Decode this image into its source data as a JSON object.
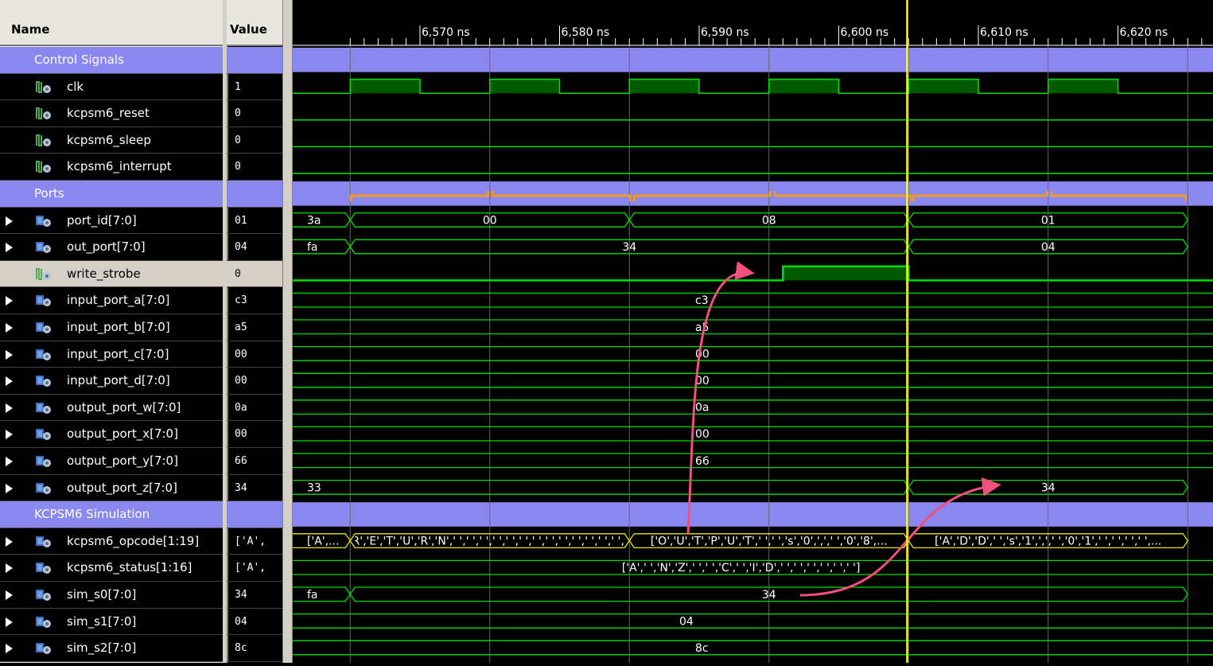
{
  "headers": {
    "name": "Name",
    "value": "Value"
  },
  "time_axis": {
    "unit": "ns",
    "labels": [
      "6,570 ns",
      "6,580 ns",
      "6,590 ns",
      "6,600 ns",
      "6,610 ns",
      "6,620 ns"
    ]
  },
  "rows": [
    {
      "type": "group",
      "name": "Control Signals",
      "value": ""
    },
    {
      "type": "bit",
      "name": "clk",
      "value": "1"
    },
    {
      "type": "bit",
      "name": "kcpsm6_reset",
      "value": "0"
    },
    {
      "type": "bit",
      "name": "kcpsm6_sleep",
      "value": "0"
    },
    {
      "type": "bit",
      "name": "kcpsm6_interrupt",
      "value": "0"
    },
    {
      "type": "group",
      "name": "Ports",
      "value": ""
    },
    {
      "type": "bus",
      "name": "port_id[7:0]",
      "value": "01"
    },
    {
      "type": "bus",
      "name": "out_port[7:0]",
      "value": "04"
    },
    {
      "type": "bit",
      "name": "write_strobe",
      "value": "0",
      "selected": true
    },
    {
      "type": "bus",
      "name": "input_port_a[7:0]",
      "value": "c3"
    },
    {
      "type": "bus",
      "name": "input_port_b[7:0]",
      "value": "a5"
    },
    {
      "type": "bus",
      "name": "input_port_c[7:0]",
      "value": "00"
    },
    {
      "type": "bus",
      "name": "input_port_d[7:0]",
      "value": "00"
    },
    {
      "type": "bus",
      "name": "output_port_w[7:0]",
      "value": "0a"
    },
    {
      "type": "bus",
      "name": "output_port_x[7:0]",
      "value": "00"
    },
    {
      "type": "bus",
      "name": "output_port_y[7:0]",
      "value": "66"
    },
    {
      "type": "bus",
      "name": "output_port_z[7:0]",
      "value": "34"
    },
    {
      "type": "group",
      "name": "KCPSM6 Simulation",
      "value": ""
    },
    {
      "type": "bus",
      "name": "kcpsm6_opcode[1:19]",
      "value": "['A',"
    },
    {
      "type": "bus",
      "name": "kcpsm6_status[1:16]",
      "value": "['A',"
    },
    {
      "type": "bus",
      "name": "sim_s0[7:0]",
      "value": "34"
    },
    {
      "type": "bus",
      "name": "sim_s1[7:0]",
      "value": "04"
    },
    {
      "type": "bus",
      "name": "sim_s2[7:0]",
      "value": "8c"
    }
  ],
  "waves": {
    "clk_rising_ns": [
      6565,
      6575,
      6585,
      6595,
      6605,
      6615
    ],
    "cursor_ns": 6604.9,
    "write_strobe": {
      "high_from_ns": 6596,
      "high_to_ns": 6605
    },
    "port_id": [
      {
        "v": "3a",
        "t1": 6565
      },
      {
        "v": "00",
        "t0": 6565,
        "t1": 6585
      },
      {
        "v": "08",
        "t0": 6585,
        "t1": 6605
      },
      {
        "v": "01",
        "t0": 6605,
        "t1": 6625
      }
    ],
    "out_port": [
      {
        "v": "fa",
        "t1": 6565
      },
      {
        "v": "34",
        "t0": 6565,
        "t1": 6605
      },
      {
        "v": "04",
        "t0": 6605,
        "t1": 6625
      }
    ],
    "const_rows": {
      "input_port_a": "c3",
      "input_port_b": "a5",
      "input_port_c": "00",
      "input_port_d": "00",
      "output_port_w": "0a",
      "output_port_x": "00",
      "output_port_y": "66",
      "sim_s1": "04",
      "sim_s2": "8c"
    },
    "output_port_z": [
      {
        "v": "33",
        "t1": 6605
      },
      {
        "v": "34",
        "t0": 6605,
        "t1": 6625
      }
    ],
    "opcode": [
      {
        "v": "['A',...",
        "t1": 6565
      },
      {
        "v": "['R','E','T','U','R','N',' ',' ',' ',' ',' ',' ',' ',' ',' ',' ',' ',' ',' ',...",
        "t0": 6565,
        "t1": 6585
      },
      {
        "v": "['O','U','T','P','U','T',' ',' ','s','0',',',' ','0','8',...",
        "t0": 6585,
        "t1": 6605
      },
      {
        "v": "['A','D','D',' ','s','1',',',' ','0','1',' ',' ',' ',' ',...",
        "t0": 6605,
        "t1": 6625
      }
    ],
    "status": "['A',' ','N','Z',' ',' ','C',' ','I','D',' ',' ',' ',' ',' ',' ']",
    "sim_s0": [
      {
        "v": "fa",
        "t1": 6565
      },
      {
        "v": "34",
        "t0": 6565,
        "t1": 6625
      }
    ]
  },
  "colors": {
    "group_bar": "#8a87ee",
    "signal": "#00e000",
    "high_fill": "#005a00",
    "cursor": "#ffff00",
    "annotation_brace": "#f39a1d",
    "annotation_arrow": "#f0507a",
    "opcode_trace": "#e8e800",
    "grid": "#666666"
  }
}
